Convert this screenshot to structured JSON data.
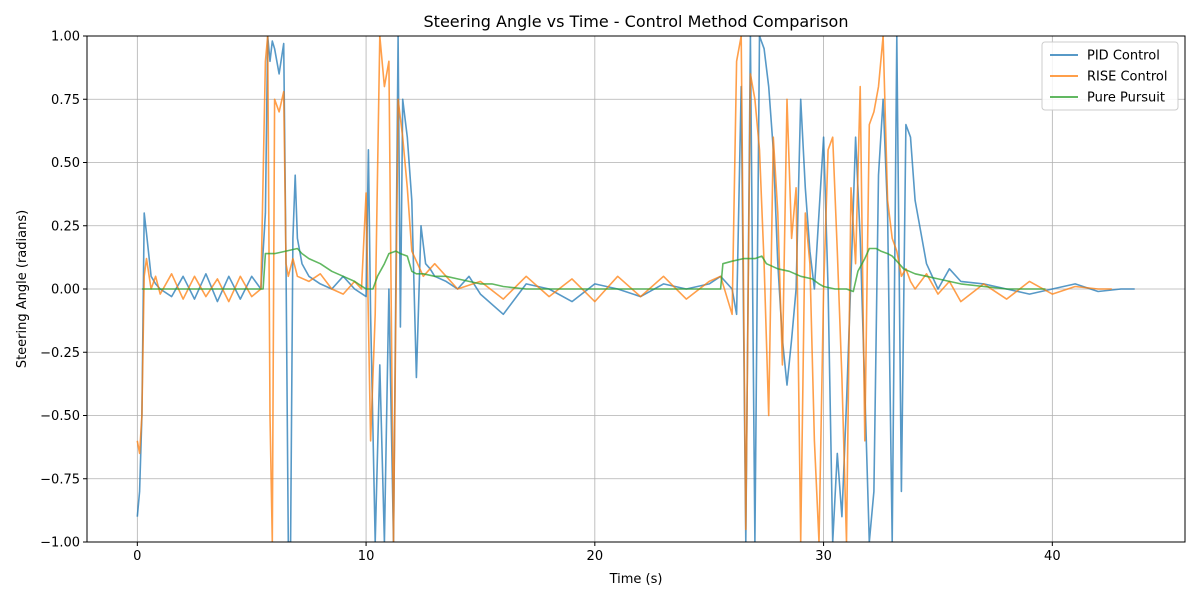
{
  "chart_data": {
    "type": "line",
    "title": "Steering Angle vs Time - Control Method Comparison",
    "xlabel": "Time (s)",
    "ylabel": "Steering Angle (radians)",
    "xlim": [
      -2.2,
      45.8
    ],
    "ylim": [
      -1.0,
      1.0
    ],
    "xticks": [
      0,
      10,
      20,
      30,
      40
    ],
    "xtick_labels": [
      "0",
      "10",
      "20",
      "30",
      "40"
    ],
    "yticks": [
      -1.0,
      -0.75,
      -0.5,
      -0.25,
      0.0,
      0.25,
      0.5,
      0.75,
      1.0
    ],
    "ytick_labels": [
      "−1.00",
      "−0.75",
      "−0.50",
      "−0.25",
      "0.00",
      "0.25",
      "0.50",
      "0.75",
      "1.00"
    ],
    "grid": true,
    "legend_position": "top-right",
    "series": [
      {
        "name": "PID Control",
        "color": "#1f77b4",
        "x": [
          0.0,
          0.1,
          0.2,
          0.3,
          0.4,
          0.6,
          0.8,
          1.0,
          1.5,
          2.0,
          2.5,
          3.0,
          3.5,
          4.0,
          4.5,
          5.0,
          5.4,
          5.6,
          5.7,
          5.8,
          5.9,
          6.0,
          6.2,
          6.4,
          6.5,
          6.6,
          6.7,
          6.8,
          6.9,
          7.0,
          7.2,
          7.5,
          8.0,
          8.5,
          9.0,
          9.5,
          10.0,
          10.1,
          10.2,
          10.4,
          10.6,
          10.8,
          11.0,
          11.2,
          11.4,
          11.5,
          11.6,
          11.8,
          12.0,
          12.2,
          12.4,
          12.6,
          12.8,
          13.0,
          13.5,
          14.0,
          14.5,
          15.0,
          16.0,
          17.0,
          18.0,
          19.0,
          20.0,
          21.0,
          22.0,
          23.0,
          24.0,
          25.0,
          25.5,
          26.0,
          26.2,
          26.4,
          26.6,
          26.8,
          27.0,
          27.2,
          27.4,
          27.6,
          27.8,
          28.0,
          28.2,
          28.4,
          28.6,
          28.8,
          29.0,
          29.2,
          29.4,
          29.6,
          29.8,
          30.0,
          30.2,
          30.4,
          30.6,
          30.8,
          31.0,
          31.2,
          31.4,
          31.6,
          31.8,
          32.0,
          32.2,
          32.4,
          32.6,
          32.8,
          33.0,
          33.2,
          33.4,
          33.6,
          33.8,
          34.0,
          34.5,
          35.0,
          35.5,
          36.0,
          37.0,
          38.0,
          39.0,
          40.0,
          41.0,
          42.0,
          43.0,
          43.6
        ],
        "y": [
          -0.9,
          -0.8,
          -0.5,
          0.3,
          0.22,
          0.05,
          0.02,
          0.0,
          -0.03,
          0.05,
          -0.04,
          0.06,
          -0.05,
          0.05,
          -0.04,
          0.05,
          0.0,
          0.3,
          1.0,
          0.9,
          0.98,
          0.95,
          0.85,
          0.97,
          0.1,
          -1.0,
          -1.0,
          0.2,
          0.45,
          0.2,
          0.1,
          0.05,
          0.02,
          0.0,
          0.05,
          0.0,
          -0.03,
          0.55,
          -0.1,
          -1.0,
          -0.3,
          -1.0,
          0.0,
          -1.0,
          1.0,
          -0.15,
          0.75,
          0.6,
          0.35,
          -0.35,
          0.25,
          0.1,
          0.08,
          0.05,
          0.03,
          0.0,
          0.05,
          -0.02,
          -0.1,
          0.02,
          0.0,
          -0.05,
          0.02,
          0.0,
          -0.03,
          0.02,
          0.0,
          0.02,
          0.05,
          0.0,
          -0.1,
          0.8,
          -1.0,
          1.0,
          -1.0,
          1.0,
          0.95,
          0.8,
          0.55,
          0.1,
          -0.2,
          -0.38,
          -0.2,
          0.0,
          0.75,
          0.4,
          0.15,
          0.0,
          0.3,
          0.6,
          0.0,
          -1.0,
          -0.65,
          -0.9,
          -0.45,
          0.05,
          0.6,
          0.2,
          -0.4,
          -1.0,
          -0.8,
          0.45,
          0.75,
          0.3,
          -1.0,
          1.0,
          -0.8,
          0.65,
          0.6,
          0.35,
          0.1,
          0.0,
          0.08,
          0.03,
          0.02,
          0.0,
          -0.02,
          0.0,
          0.02,
          -0.01,
          0.0,
          0.0
        ]
      },
      {
        "name": "RISE Control",
        "color": "#ff7f0e",
        "x": [
          0.0,
          0.1,
          0.2,
          0.3,
          0.4,
          0.6,
          0.8,
          1.0,
          1.5,
          2.0,
          2.5,
          3.0,
          3.5,
          4.0,
          4.5,
          5.0,
          5.4,
          5.6,
          5.7,
          5.8,
          5.9,
          6.0,
          6.2,
          6.4,
          6.5,
          6.6,
          6.8,
          7.0,
          7.5,
          8.0,
          8.5,
          9.0,
          9.5,
          9.8,
          10.0,
          10.2,
          10.4,
          10.6,
          10.8,
          11.0,
          11.2,
          11.4,
          11.6,
          11.8,
          12.0,
          12.5,
          13.0,
          14.0,
          15.0,
          16.0,
          17.0,
          18.0,
          19.0,
          20.0,
          21.0,
          22.0,
          23.0,
          24.0,
          25.0,
          25.5,
          26.0,
          26.2,
          26.4,
          26.6,
          26.8,
          27.0,
          27.2,
          27.4,
          27.6,
          27.8,
          28.0,
          28.2,
          28.4,
          28.6,
          28.8,
          29.0,
          29.2,
          29.4,
          29.6,
          29.8,
          30.0,
          30.2,
          30.4,
          30.6,
          30.8,
          31.0,
          31.2,
          31.4,
          31.6,
          31.8,
          32.0,
          32.2,
          32.4,
          32.6,
          32.8,
          33.0,
          33.2,
          33.4,
          33.6,
          33.8,
          34.0,
          34.5,
          35.0,
          35.5,
          36.0,
          37.0,
          38.0,
          39.0,
          40.0,
          41.0,
          42.0,
          42.6
        ],
        "y": [
          -0.6,
          -0.65,
          -0.5,
          0.05,
          0.12,
          0.0,
          0.05,
          -0.02,
          0.06,
          -0.04,
          0.05,
          -0.03,
          0.04,
          -0.05,
          0.05,
          -0.03,
          0.0,
          0.9,
          1.0,
          -0.5,
          -1.0,
          0.75,
          0.7,
          0.78,
          0.1,
          0.05,
          0.12,
          0.05,
          0.03,
          0.06,
          0.0,
          -0.02,
          0.03,
          0.0,
          0.38,
          -0.6,
          -0.1,
          1.0,
          0.8,
          0.9,
          -1.0,
          0.75,
          0.6,
          0.4,
          0.15,
          0.05,
          0.1,
          0.0,
          0.03,
          -0.04,
          0.05,
          -0.03,
          0.04,
          -0.05,
          0.05,
          -0.03,
          0.05,
          -0.04,
          0.03,
          0.05,
          -0.1,
          0.9,
          1.0,
          -0.95,
          0.85,
          0.75,
          0.55,
          0.1,
          -0.5,
          0.6,
          0.3,
          -0.3,
          0.75,
          0.2,
          0.4,
          -1.0,
          0.3,
          0.1,
          -0.6,
          -1.0,
          0.0,
          0.55,
          0.6,
          0.15,
          -0.35,
          -1.0,
          0.4,
          0.1,
          0.8,
          -0.6,
          0.65,
          0.7,
          0.8,
          1.0,
          0.35,
          0.2,
          0.15,
          0.05,
          0.08,
          0.03,
          0.0,
          0.06,
          -0.02,
          0.03,
          -0.05,
          0.02,
          -0.04,
          0.03,
          -0.02,
          0.01,
          0.0,
          0.0
        ]
      },
      {
        "name": "Pure Pursuit",
        "color": "#2ca02c",
        "x": [
          0.2,
          1.0,
          2.0,
          3.0,
          4.0,
          5.0,
          5.5,
          5.6,
          6.0,
          6.5,
          7.0,
          7.2,
          7.5,
          8.0,
          8.5,
          9.0,
          9.5,
          10.0,
          10.3,
          10.5,
          10.8,
          11.0,
          11.3,
          11.5,
          11.8,
          12.0,
          12.2,
          12.5,
          13.0,
          13.5,
          14.0,
          14.5,
          15.0,
          15.5,
          16.0,
          17.0,
          18.0,
          20.0,
          22.0,
          24.0,
          25.0,
          25.5,
          25.6,
          26.0,
          26.5,
          27.0,
          27.3,
          27.5,
          28.0,
          28.5,
          29.0,
          29.5,
          29.8,
          30.0,
          30.5,
          31.0,
          31.3,
          31.5,
          31.8,
          32.0,
          32.3,
          32.5,
          32.8,
          33.0,
          33.3,
          33.5,
          34.0,
          34.5,
          35.0,
          35.5,
          36.0,
          37.0,
          38.0,
          39.0,
          39.7
        ],
        "y": [
          0.0,
          0.0,
          0.0,
          0.0,
          0.0,
          0.0,
          0.0,
          0.14,
          0.14,
          0.15,
          0.16,
          0.14,
          0.12,
          0.1,
          0.07,
          0.05,
          0.03,
          0.0,
          0.0,
          0.05,
          0.1,
          0.14,
          0.15,
          0.14,
          0.13,
          0.07,
          0.06,
          0.06,
          0.05,
          0.05,
          0.04,
          0.03,
          0.02,
          0.02,
          0.01,
          0.0,
          0.0,
          0.0,
          0.0,
          0.0,
          0.0,
          0.0,
          0.1,
          0.11,
          0.12,
          0.12,
          0.13,
          0.1,
          0.08,
          0.07,
          0.05,
          0.04,
          0.02,
          0.01,
          0.0,
          0.0,
          -0.01,
          0.07,
          0.12,
          0.16,
          0.16,
          0.15,
          0.14,
          0.13,
          0.1,
          0.08,
          0.06,
          0.05,
          0.04,
          0.03,
          0.02,
          0.01,
          0.0,
          0.0,
          0.0
        ]
      }
    ]
  }
}
